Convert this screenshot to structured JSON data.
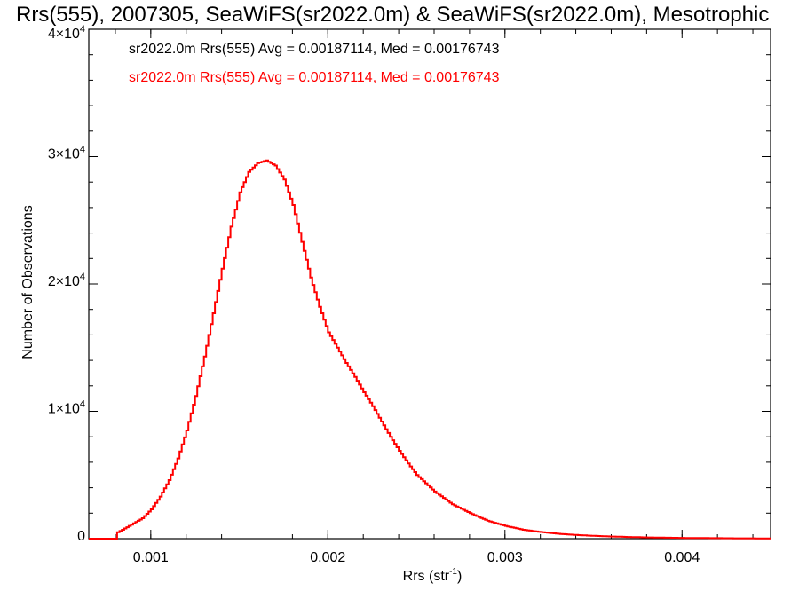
{
  "chart_data": {
    "type": "line",
    "title": "Rrs(555), 2007305, SeaWiFS(sr2022.0m) & SeaWiFS(sr2022.0m), Mesotrophic",
    "xlabel": "Rrs (str",
    "xlabel_sup": "-1",
    "xlabel_end": ")",
    "ylabel": "Number of Observations",
    "xlim": [
      0.00065,
      0.0045
    ],
    "ylim": [
      0,
      40000
    ],
    "x_ticks": [
      {
        "value": 0.001,
        "label": "0.001"
      },
      {
        "value": 0.002,
        "label": "0.002"
      },
      {
        "value": 0.003,
        "label": "0.003"
      },
      {
        "value": 0.004,
        "label": "0.004"
      }
    ],
    "y_ticks": [
      {
        "value": 0,
        "label": "0",
        "exp": ""
      },
      {
        "value": 10000,
        "label": "1×10",
        "exp": "4"
      },
      {
        "value": 20000,
        "label": "2×10",
        "exp": "4"
      },
      {
        "value": 30000,
        "label": "3×10",
        "exp": "4"
      },
      {
        "value": 40000,
        "label": "4×10",
        "exp": "4"
      }
    ],
    "legend": [
      {
        "text": "sr2022.0m Rrs(555) Avg = 0.00187114, Med = 0.00176743",
        "color": "#000000"
      },
      {
        "text": "sr2022.0m Rrs(555) Avg = 0.00187114, Med = 0.00176743",
        "color": "#ff0000"
      }
    ],
    "legend_position": "top-left",
    "series": [
      {
        "color": "#ff0000",
        "x": [
          0.00065,
          0.0008,
          0.00081,
          0.00085,
          0.0009,
          0.00095,
          0.001,
          0.00105,
          0.0011,
          0.00115,
          0.0012,
          0.00125,
          0.0013,
          0.00135,
          0.0014,
          0.00145,
          0.0015,
          0.00155,
          0.0016,
          0.00165,
          0.0017,
          0.00175,
          0.0018,
          0.00185,
          0.0019,
          0.00195,
          0.002,
          0.00205,
          0.0021,
          0.00215,
          0.0022,
          0.00225,
          0.0023,
          0.00235,
          0.0024,
          0.00245,
          0.0025,
          0.0026,
          0.0027,
          0.0028,
          0.0029,
          0.003,
          0.0031,
          0.0032,
          0.0033,
          0.0034,
          0.0035,
          0.0036,
          0.0037,
          0.0038,
          0.0039,
          0.004,
          0.0041,
          0.0042,
          0.0043,
          0.0044,
          0.0045
        ],
        "y": [
          0,
          0,
          500,
          800,
          1200,
          1600,
          2300,
          3300,
          4600,
          6300,
          8500,
          11200,
          14300,
          17700,
          21200,
          24500,
          27200,
          28800,
          29500,
          29700,
          29300,
          28200,
          26200,
          23300,
          20500,
          18200,
          16200,
          15000,
          13800,
          12700,
          11500,
          10400,
          9200,
          8000,
          6900,
          5900,
          5000,
          3700,
          2700,
          2000,
          1400,
          1000,
          700,
          520,
          380,
          290,
          220,
          170,
          130,
          100,
          80,
          60,
          50,
          40,
          30,
          25,
          20
        ]
      }
    ]
  }
}
